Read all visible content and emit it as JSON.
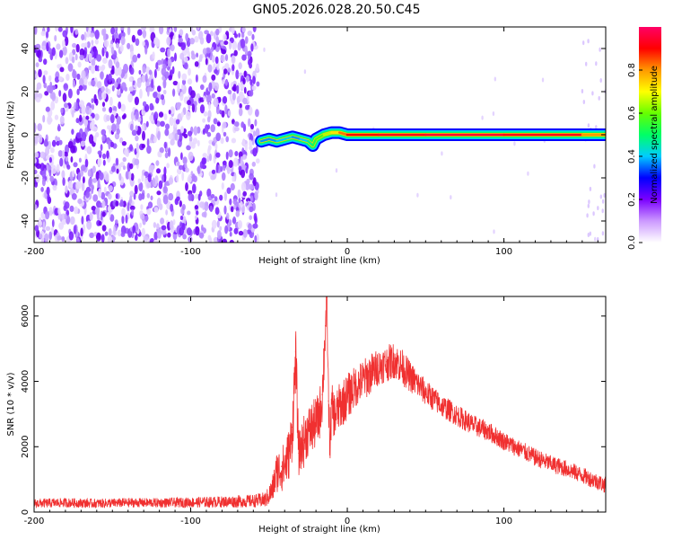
{
  "figure": {
    "title": "GN05.2026.028.20.50.C45"
  },
  "chart_data": [
    {
      "type": "heatmap",
      "title": "GN05.2026.028.20.50.C45",
      "xlabel": "Height of straight line (km)",
      "ylabel": "Frequency (Hz)",
      "xlim": [
        -200,
        165
      ],
      "ylim": [
        -50,
        50
      ],
      "xticks": [
        -200,
        -100,
        0,
        100
      ],
      "yticks": [
        -40,
        -20,
        0,
        20,
        40
      ],
      "colorbar": {
        "label": "Normalized spectral amplitude",
        "range": [
          0,
          1
        ],
        "ticks": [
          0.0,
          0.2,
          0.4,
          0.6,
          0.8
        ],
        "colormap": [
          "#ffffff",
          "#cc99ff",
          "#7b00ff",
          "#0000ff",
          "#00ccff",
          "#00ff66",
          "#66ff00",
          "#ffff00",
          "#ff9900",
          "#ff0000",
          "#ff0066"
        ]
      },
      "noise_region_x": [
        -200,
        -57
      ],
      "signal_track": {
        "x": [
          -55,
          -50,
          -45,
          -40,
          -35,
          -30,
          -25,
          -22,
          -20,
          -15,
          -10,
          -5,
          0,
          20,
          50,
          100,
          150,
          165
        ],
        "freq": [
          -3,
          -2,
          -3,
          -2,
          -1,
          -2,
          -3,
          -5,
          -2,
          0,
          1,
          1,
          0,
          0,
          0,
          0,
          0,
          0
        ],
        "amplitude": [
          0.35,
          0.4,
          0.35,
          0.45,
          0.4,
          0.35,
          0.45,
          0.5,
          0.55,
          0.6,
          0.7,
          0.75,
          0.9,
          0.9,
          0.95,
          0.95,
          0.9,
          0.7
        ]
      }
    },
    {
      "type": "line",
      "xlabel": "Height of straight line (km)",
      "ylabel": "SNR (10 * v/v)",
      "xlim": [
        -200,
        165
      ],
      "ylim": [
        0,
        6600
      ],
      "xticks": [
        -200,
        -100,
        0,
        100
      ],
      "yticks": [
        0,
        2000,
        4000,
        6000
      ],
      "color": "#f03030",
      "series": [
        {
          "x": [
            -200,
            -180,
            -160,
            -140,
            -120,
            -100,
            -80,
            -60,
            -52,
            -48,
            -45,
            -42,
            -40,
            -37,
            -35,
            -33,
            -31,
            -30,
            -28,
            -26,
            -24,
            -22,
            -20,
            -18,
            -16,
            -14,
            -13,
            -12,
            -11,
            -10,
            -8,
            -5,
            0,
            5,
            10,
            15,
            20,
            25,
            30,
            35,
            40,
            50,
            60,
            70,
            80,
            90,
            100,
            110,
            120,
            130,
            140,
            150,
            160,
            165
          ],
          "values": [
            280,
            300,
            280,
            300,
            300,
            310,
            330,
            360,
            400,
            700,
            1300,
            1400,
            1500,
            1900,
            2600,
            4900,
            1800,
            2000,
            2200,
            2500,
            2600,
            2700,
            2800,
            3000,
            3600,
            5700,
            6600,
            3400,
            2100,
            3300,
            3000,
            3300,
            3600,
            3900,
            4100,
            4300,
            4500,
            4600,
            4700,
            4500,
            4200,
            3700,
            3300,
            3000,
            2700,
            2500,
            2200,
            1950,
            1700,
            1500,
            1350,
            1150,
            950,
            850
          ],
          "noise_band": [
            180,
            180,
            180,
            180,
            180,
            200,
            220,
            250,
            300,
            500,
            800,
            900,
            900,
            1000,
            1100,
            1300,
            800,
            900,
            1000,
            1000,
            1000,
            1000,
            1000,
            1000,
            1000,
            1000,
            900,
            900,
            800,
            900,
            900,
            900,
            900,
            800,
            800,
            800,
            700,
            700,
            700,
            700,
            600,
            500,
            450,
            420,
            400,
            380,
            360,
            350,
            340,
            330,
            330,
            320,
            320,
            320
          ]
        }
      ]
    }
  ]
}
